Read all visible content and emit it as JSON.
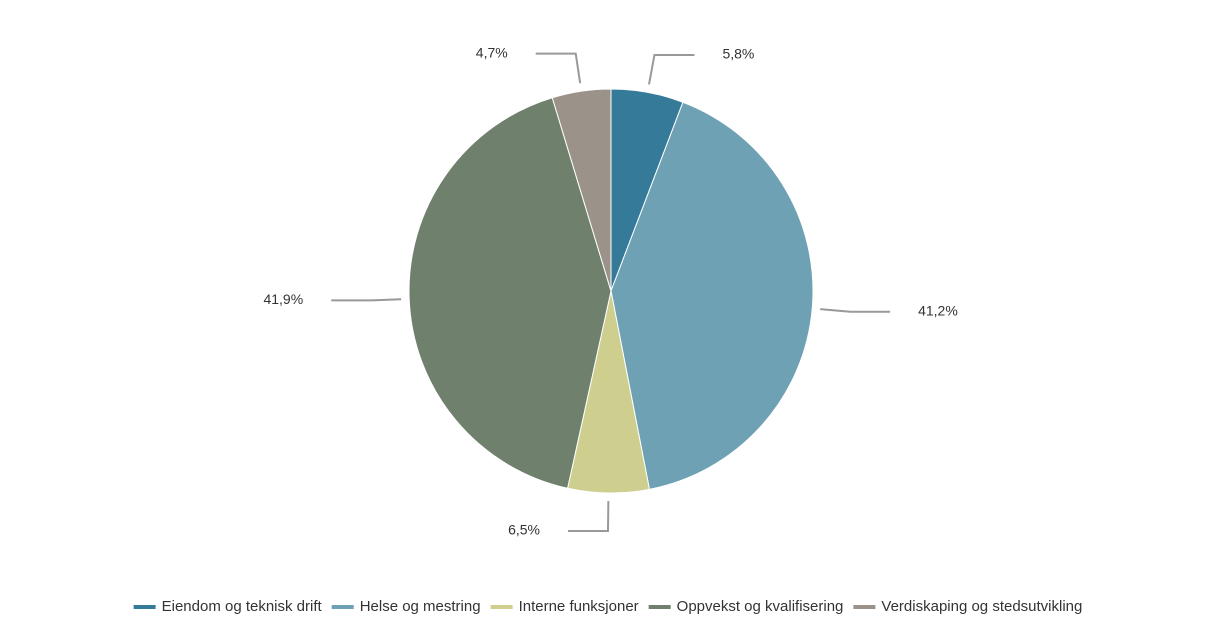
{
  "chart_data": {
    "type": "pie",
    "categories": [
      "Eiendom og teknisk drift",
      "Helse og mestring",
      "Interne funksjoner",
      "Oppvekst og kvalifisering",
      "Verdiskaping og stedsutvikling"
    ],
    "values": [
      5.8,
      41.2,
      6.5,
      41.9,
      4.7
    ],
    "value_labels": [
      "5,8%",
      "41,2%",
      "6,5%",
      "41,9%",
      "4,7%"
    ],
    "colors": [
      "#367a9a",
      "#6fa1b4",
      "#cece8e",
      "#6f806c",
      "#9b9389"
    ],
    "legend": "bottom"
  }
}
